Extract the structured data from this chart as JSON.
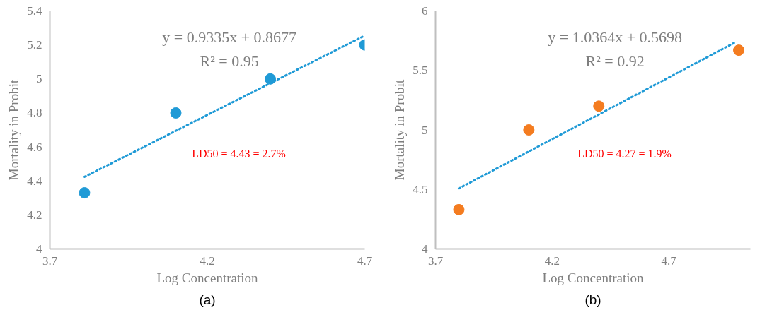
{
  "chart_data": [
    {
      "type": "scatter",
      "xlabel": "Log Concentration",
      "ylabel": "Mortality in Probit",
      "xlim": [
        3.7,
        4.7
      ],
      "xticks": [
        3.7,
        4.2,
        4.7
      ],
      "ylim": [
        4,
        5.4
      ],
      "yticks": [
        4,
        4.2,
        4.4,
        4.6,
        4.8,
        5,
        5.2,
        5.4
      ],
      "grid": false,
      "x": [
        3.81,
        4.1,
        4.4,
        4.7
      ],
      "series": [
        {
          "color": "#1f9ad6",
          "marker": "circle",
          "values": [
            4.33,
            4.8,
            5.0,
            5.2
          ]
        },
        {
          "type": "line",
          "color": "#1f9ad6",
          "line_style": "dotted",
          "x": [
            3.81,
            4.7
          ],
          "values": [
            4.424,
            5.255
          ]
        }
      ],
      "annotations": [
        "y = 0.9335x + 0.8677",
        "R² = 0.95",
        "LD50 = 4.43 = 2.7%",
        "(a)"
      ]
    },
    {
      "type": "scatter",
      "xlabel": "Log Concentration",
      "ylabel": "Mortality in Probit",
      "xlim": [
        3.7,
        5.05
      ],
      "xticks": [
        3.7,
        4.2,
        4.7
      ],
      "ylim": [
        4,
        6
      ],
      "yticks": [
        4,
        4.5,
        5,
        5.5,
        6
      ],
      "grid": false,
      "x": [
        3.8,
        4.1,
        4.4,
        5.0
      ],
      "series": [
        {
          "color": "#f47c20",
          "marker": "circle",
          "values": [
            4.33,
            5.0,
            5.2,
            5.67
          ]
        },
        {
          "type": "line",
          "color": "#1f9ad6",
          "line_style": "dotted",
          "x": [
            3.8,
            4.98
          ],
          "values": [
            4.508,
            5.731
          ]
        }
      ],
      "annotations": [
        "y = 1.0364x + 0.5698",
        "R² = 0.92",
        "LD50 = 4.27 = 1.9%",
        "(b)"
      ]
    }
  ]
}
